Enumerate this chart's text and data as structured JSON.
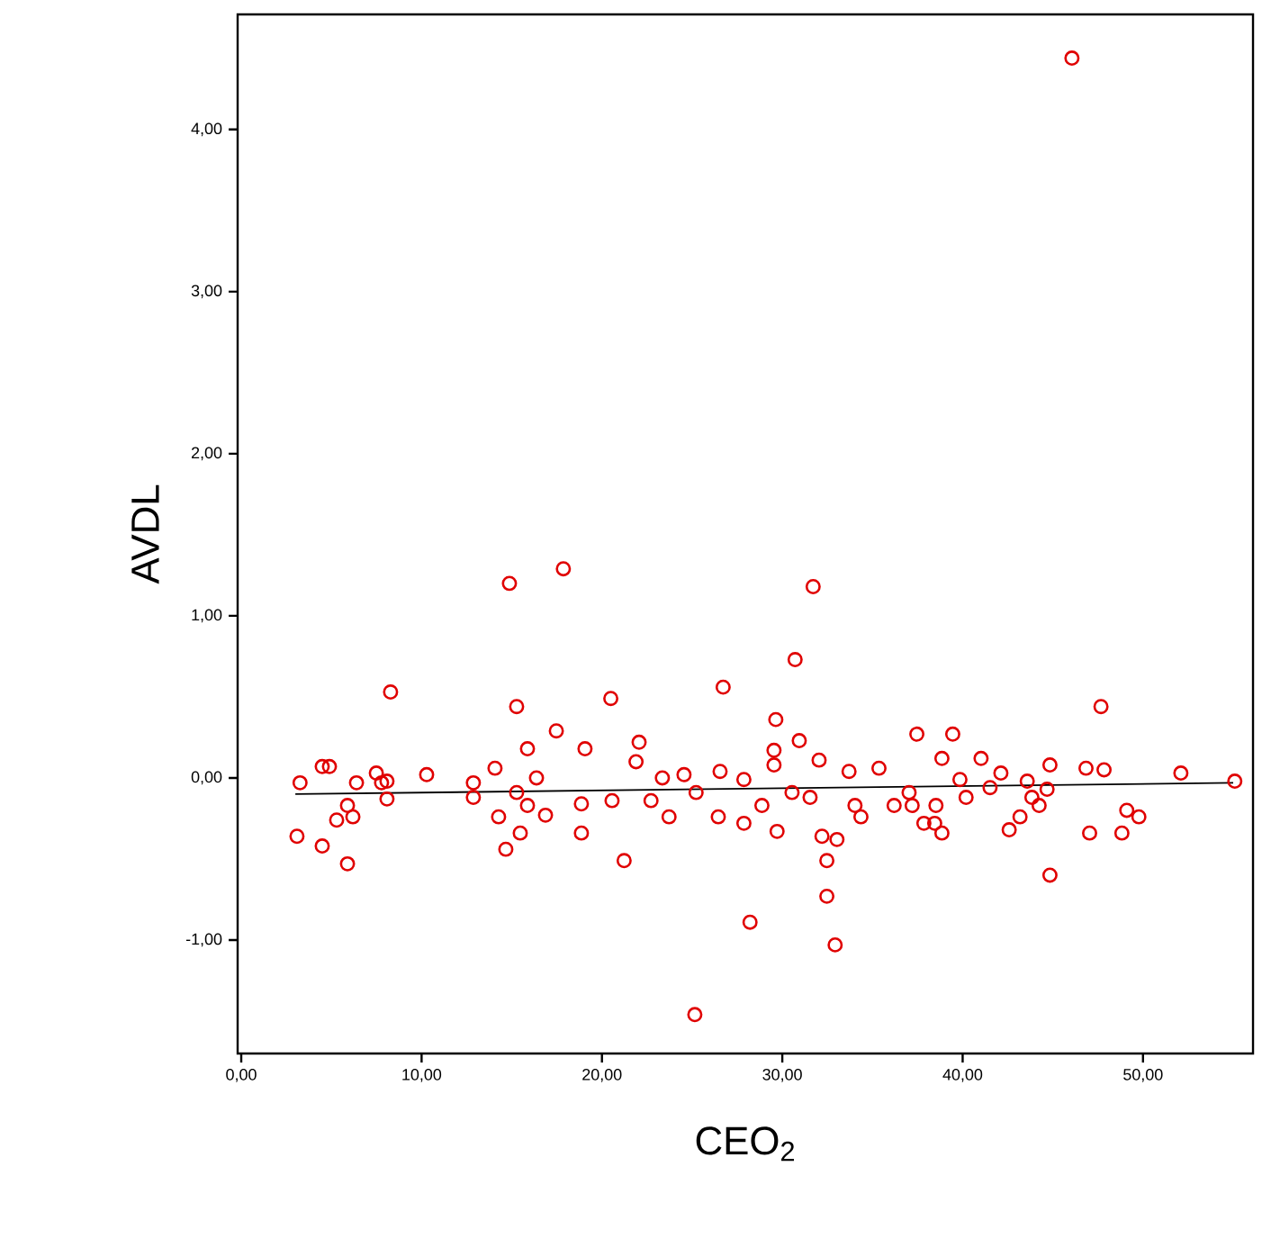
{
  "chart_data": {
    "type": "scatter",
    "xlabel": "CEO$_{2}$",
    "ylabel": "AVDL",
    "xlim": [
      -0.2,
      56.1
    ],
    "ylim": [
      -1.7,
      4.71
    ],
    "xticks": [
      {
        "value": 0,
        "label": "0,00"
      },
      {
        "value": 10,
        "label": "10,00"
      },
      {
        "value": 20,
        "label": "20,00"
      },
      {
        "value": 30,
        "label": "30,00"
      },
      {
        "value": 40,
        "label": "40,00"
      },
      {
        "value": 50,
        "label": "50,00"
      }
    ],
    "yticks": [
      {
        "value": -1,
        "label": "-1,00"
      },
      {
        "value": 0,
        "label": "0,00"
      },
      {
        "value": 1,
        "label": "1,00"
      },
      {
        "value": 2,
        "label": "2,00"
      },
      {
        "value": 3,
        "label": "3,00"
      },
      {
        "value": 4,
        "label": "4,00"
      }
    ],
    "grid": false,
    "marker": "circle",
    "series": [
      {
        "color": "#e00000",
        "x": [
          3.26,
          4.49,
          4.89,
          3.09,
          4.49,
          5.89,
          5.29,
          6.19,
          5.89,
          6.39,
          7.49,
          8.08,
          8.08,
          7.78,
          8.28,
          10.28,
          12.87,
          12.87,
          14.07,
          14.27,
          14.67,
          15.47,
          15.27,
          15.87,
          17.47,
          14.87,
          17.86,
          19.06,
          18.86,
          18.86,
          16.87,
          15.87,
          15.27,
          16.37,
          31.71,
          30.71,
          26.72,
          20.49,
          29.64,
          37.46,
          22.06,
          30.94,
          21.23,
          28.21,
          32.47,
          32.93,
          25.15,
          32.47,
          32.2,
          33.03,
          23.72,
          26.45,
          29.71,
          27.87,
          34.36,
          36.2,
          20.56,
          22.72,
          25.22,
          27.87,
          29.54,
          29.54,
          32.04,
          33.7,
          35.36,
          21.89,
          24.55,
          26.55,
          30.54,
          31.54,
          23.35,
          28.87,
          34.03,
          37.03,
          47.67,
          39.45,
          38.85,
          41.02,
          42.12,
          43.58,
          44.84,
          46.84,
          47.84,
          52.1,
          55.09,
          49.1,
          49.77,
          48.83,
          47.04,
          44.84,
          42.58,
          43.18,
          44.24,
          44.68,
          38.85,
          37.85,
          37.2,
          40.19,
          41.52,
          38.52,
          39.85,
          38.45,
          43.84,
          46.06
        ],
        "values": [
          -0.03,
          0.07,
          0.07,
          -0.36,
          -0.42,
          -0.53,
          -0.26,
          -0.24,
          -0.17,
          -0.03,
          0.03,
          -0.02,
          -0.13,
          -0.03,
          0.53,
          0.02,
          -0.03,
          -0.12,
          0.06,
          -0.24,
          -0.44,
          -0.34,
          0.44,
          0.18,
          0.29,
          1.2,
          1.29,
          0.18,
          -0.34,
          -0.16,
          -0.23,
          -0.17,
          -0.09,
          0.0,
          1.18,
          0.73,
          0.56,
          0.49,
          0.36,
          0.27,
          0.22,
          0.23,
          -0.51,
          -0.89,
          -0.73,
          -1.03,
          -1.46,
          -0.51,
          -0.36,
          -0.38,
          -0.24,
          -0.24,
          -0.33,
          -0.28,
          -0.24,
          -0.17,
          -0.14,
          -0.14,
          -0.09,
          -0.01,
          0.17,
          0.08,
          0.11,
          0.04,
          0.06,
          0.1,
          0.02,
          0.04,
          -0.09,
          -0.12,
          0.0,
          -0.17,
          -0.17,
          -0.09,
          0.44,
          0.27,
          0.12,
          0.12,
          0.03,
          -0.02,
          0.08,
          0.06,
          0.05,
          0.03,
          -0.02,
          -0.2,
          -0.24,
          -0.34,
          -0.34,
          -0.6,
          -0.32,
          -0.24,
          -0.17,
          -0.07,
          -0.34,
          -0.28,
          -0.17,
          -0.12,
          -0.06,
          -0.17,
          -0.01,
          -0.28,
          -0.12,
          4.44
        ]
      },
      {
        "type": "line",
        "color": "#000000",
        "marker": "none",
        "line_style": "solid",
        "x": [
          3.0,
          55.0
        ],
        "values": [
          -0.1,
          -0.03
        ]
      }
    ]
  }
}
